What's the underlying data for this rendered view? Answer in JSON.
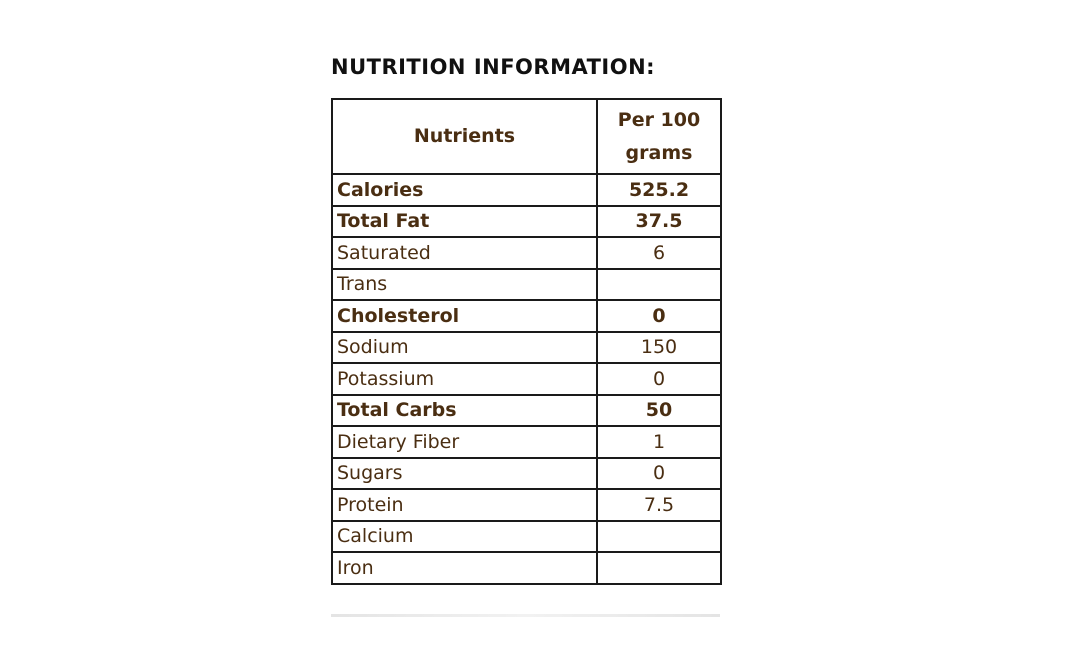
{
  "heading": "NUTRITION INFORMATION:",
  "table": {
    "headers": {
      "nutrient": "Nutrients",
      "amount": "Per 100 grams"
    },
    "rows": [
      {
        "nutrient": "Calories",
        "value": "525.2",
        "bold": true
      },
      {
        "nutrient": "Total Fat",
        "value": "37.5",
        "bold": true
      },
      {
        "nutrient": "Saturated",
        "value": "6",
        "bold": false
      },
      {
        "nutrient": "Trans",
        "value": "",
        "bold": false
      },
      {
        "nutrient": "Cholesterol",
        "value": "0",
        "bold": true
      },
      {
        "nutrient": "Sodium",
        "value": "150",
        "bold": false
      },
      {
        "nutrient": "Potassium",
        "value": "0",
        "bold": false
      },
      {
        "nutrient": "Total Carbs",
        "value": "50",
        "bold": true
      },
      {
        "nutrient": "Dietary Fiber",
        "value": "1",
        "bold": false
      },
      {
        "nutrient": "Sugars",
        "value": "0",
        "bold": false
      },
      {
        "nutrient": "Protein",
        "value": "7.5",
        "bold": false
      },
      {
        "nutrient": "Calcium",
        "value": "",
        "bold": false
      },
      {
        "nutrient": "Iron",
        "value": "",
        "bold": false
      }
    ]
  },
  "colors": {
    "text": "#4a2e12",
    "heading": "#111111",
    "border": "#1a1a1a"
  }
}
